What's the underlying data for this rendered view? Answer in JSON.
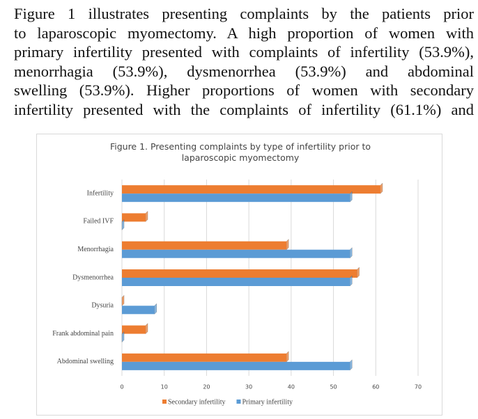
{
  "paragraph_lines": [
    "Figure 1 illustrates presenting complaints by the patients prior",
    "to laparoscopic myomectomy. A high proportion of women with",
    "primary infertility presented with complaints of infertility (53.9%),",
    "menorrhagia (53.9%), dysmenorrhea (53.9%) and abdominal",
    "swelling (53.9%). Higher proportions of women with secondary",
    "infertility presented with the complaints of infertility (61.1%) and"
  ],
  "chart_data": {
    "type": "hbar",
    "title": "Figure 1. Presenting complaints by type of infertility prior to laparoscopic myomectomy",
    "categories": [
      "Infertility",
      "Failed IVF",
      "Menorrhagia",
      "Dysmenorrhea",
      "Dysuria",
      "Frank abdominal pain",
      "Abdominal swelling"
    ],
    "series": [
      {
        "name": "Secondary infertility",
        "color": "#ed7d31",
        "values": [
          61.1,
          5.6,
          38.9,
          55.6,
          0,
          5.6,
          38.9
        ]
      },
      {
        "name": "Primary infertility",
        "color": "#5b9bd5",
        "values": [
          53.9,
          0,
          53.9,
          53.9,
          7.7,
          0,
          53.9
        ]
      }
    ],
    "xlim": [
      0,
      70
    ],
    "xticks": [
      0,
      10,
      20,
      30,
      40,
      50,
      60,
      70
    ],
    "grid": true,
    "legend": "bottom"
  }
}
